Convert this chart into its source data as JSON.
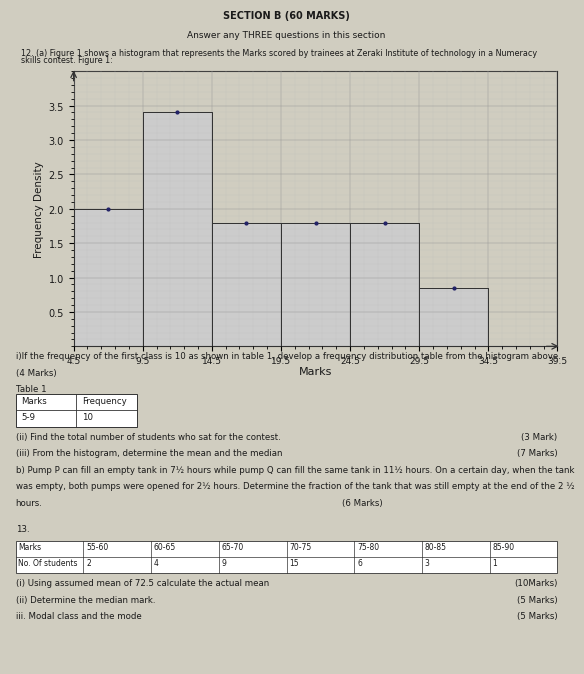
{
  "title_section": "SECTION B (60 MARKS)",
  "title_sub": "Answer any THREE questions in this section",
  "title_figure_left": "12. (a) Figure 1 shows a histogram that represents the Marks scored by trainees at Zeraki Institute of technology in a Numeracy",
  "title_figure_left2": "skills contest. Figure 1:",
  "xlabel": "Marks",
  "ylabel": "Frequency Density",
  "ylim": [
    0,
    4.0
  ],
  "yticks": [
    0.5,
    1.0,
    1.5,
    2.0,
    2.5,
    3.0,
    3.5
  ],
  "bar_left_edges": [
    4.5,
    9.5,
    14.5,
    19.5,
    24.5,
    29.5
  ],
  "bar_widths": [
    5,
    5,
    5,
    5,
    5,
    5
  ],
  "bar_heights": [
    2.0,
    3.4,
    1.8,
    1.8,
    1.8,
    0.85
  ],
  "xtick_positions": [
    4.5,
    9.5,
    14.5,
    19.5,
    24.5,
    29.5,
    34.5,
    39.5
  ],
  "xtick_labels": [
    "4.5",
    "9.5",
    "14.5",
    "19.5",
    "24.5",
    "29.5",
    "34.5",
    "39.5"
  ],
  "bar_color": "#cccccc",
  "bar_edge_color": "#333333",
  "grid_color": "#999999",
  "minor_grid_color": "#bbbbbb",
  "background_color": "#d0cdc0",
  "text_color": "#1a1a1a",
  "dot_color": "#222266",
  "bottom_text1": "i)If the frequency of the first class is 10 as shown in table 1, develop a frequency distribution table from the histogram above.",
  "bottom_text2": "(4 Marks)",
  "bottom_text3": "Table 1",
  "table1_headers": [
    "Marks",
    "Frequency"
  ],
  "table1_row": [
    "5-9",
    "10"
  ],
  "bottom_text4": "(ii) Find the total number of students who sat for the contest.",
  "bottom_text4_right": "(3 Mark)",
  "bottom_text5": "(iii) From the histogram, determine the mean and the median",
  "bottom_text5_right": "(7 Marks)",
  "bottom_text6": "b) Pump P can fill an empty tank in 7½ hours while pump Q can fill the same tank in 11½ hours. On a certain day, when the tank",
  "bottom_text7": "was empty, both pumps were opened for 2½ hours. Determine the fraction of the tank that was still empty at the end of the 2 ½",
  "bottom_text8": "hours.",
  "bottom_text8_right": "(6 Marks)",
  "q13_label": "13.",
  "q13_col_headers": [
    "Marks",
    "55-60",
    "60-65",
    "65-70",
    "70-75",
    "75-80",
    "80-85",
    "85-90"
  ],
  "q13_row_label": "No. Of students",
  "q13_values": [
    "2",
    "4",
    "9",
    "15",
    "6",
    "3",
    "1"
  ],
  "q13_text1": "(i) Using assumed mean of 72.5 calculate the actual mean",
  "q13_text1_right": "(10Marks)",
  "q13_text2": "(ii) Determine the median mark.",
  "q13_text2_right": "(5 Marks)",
  "q13_text3": "iii. Modal class and the mode",
  "q13_text3_right": "(5 Marks)"
}
